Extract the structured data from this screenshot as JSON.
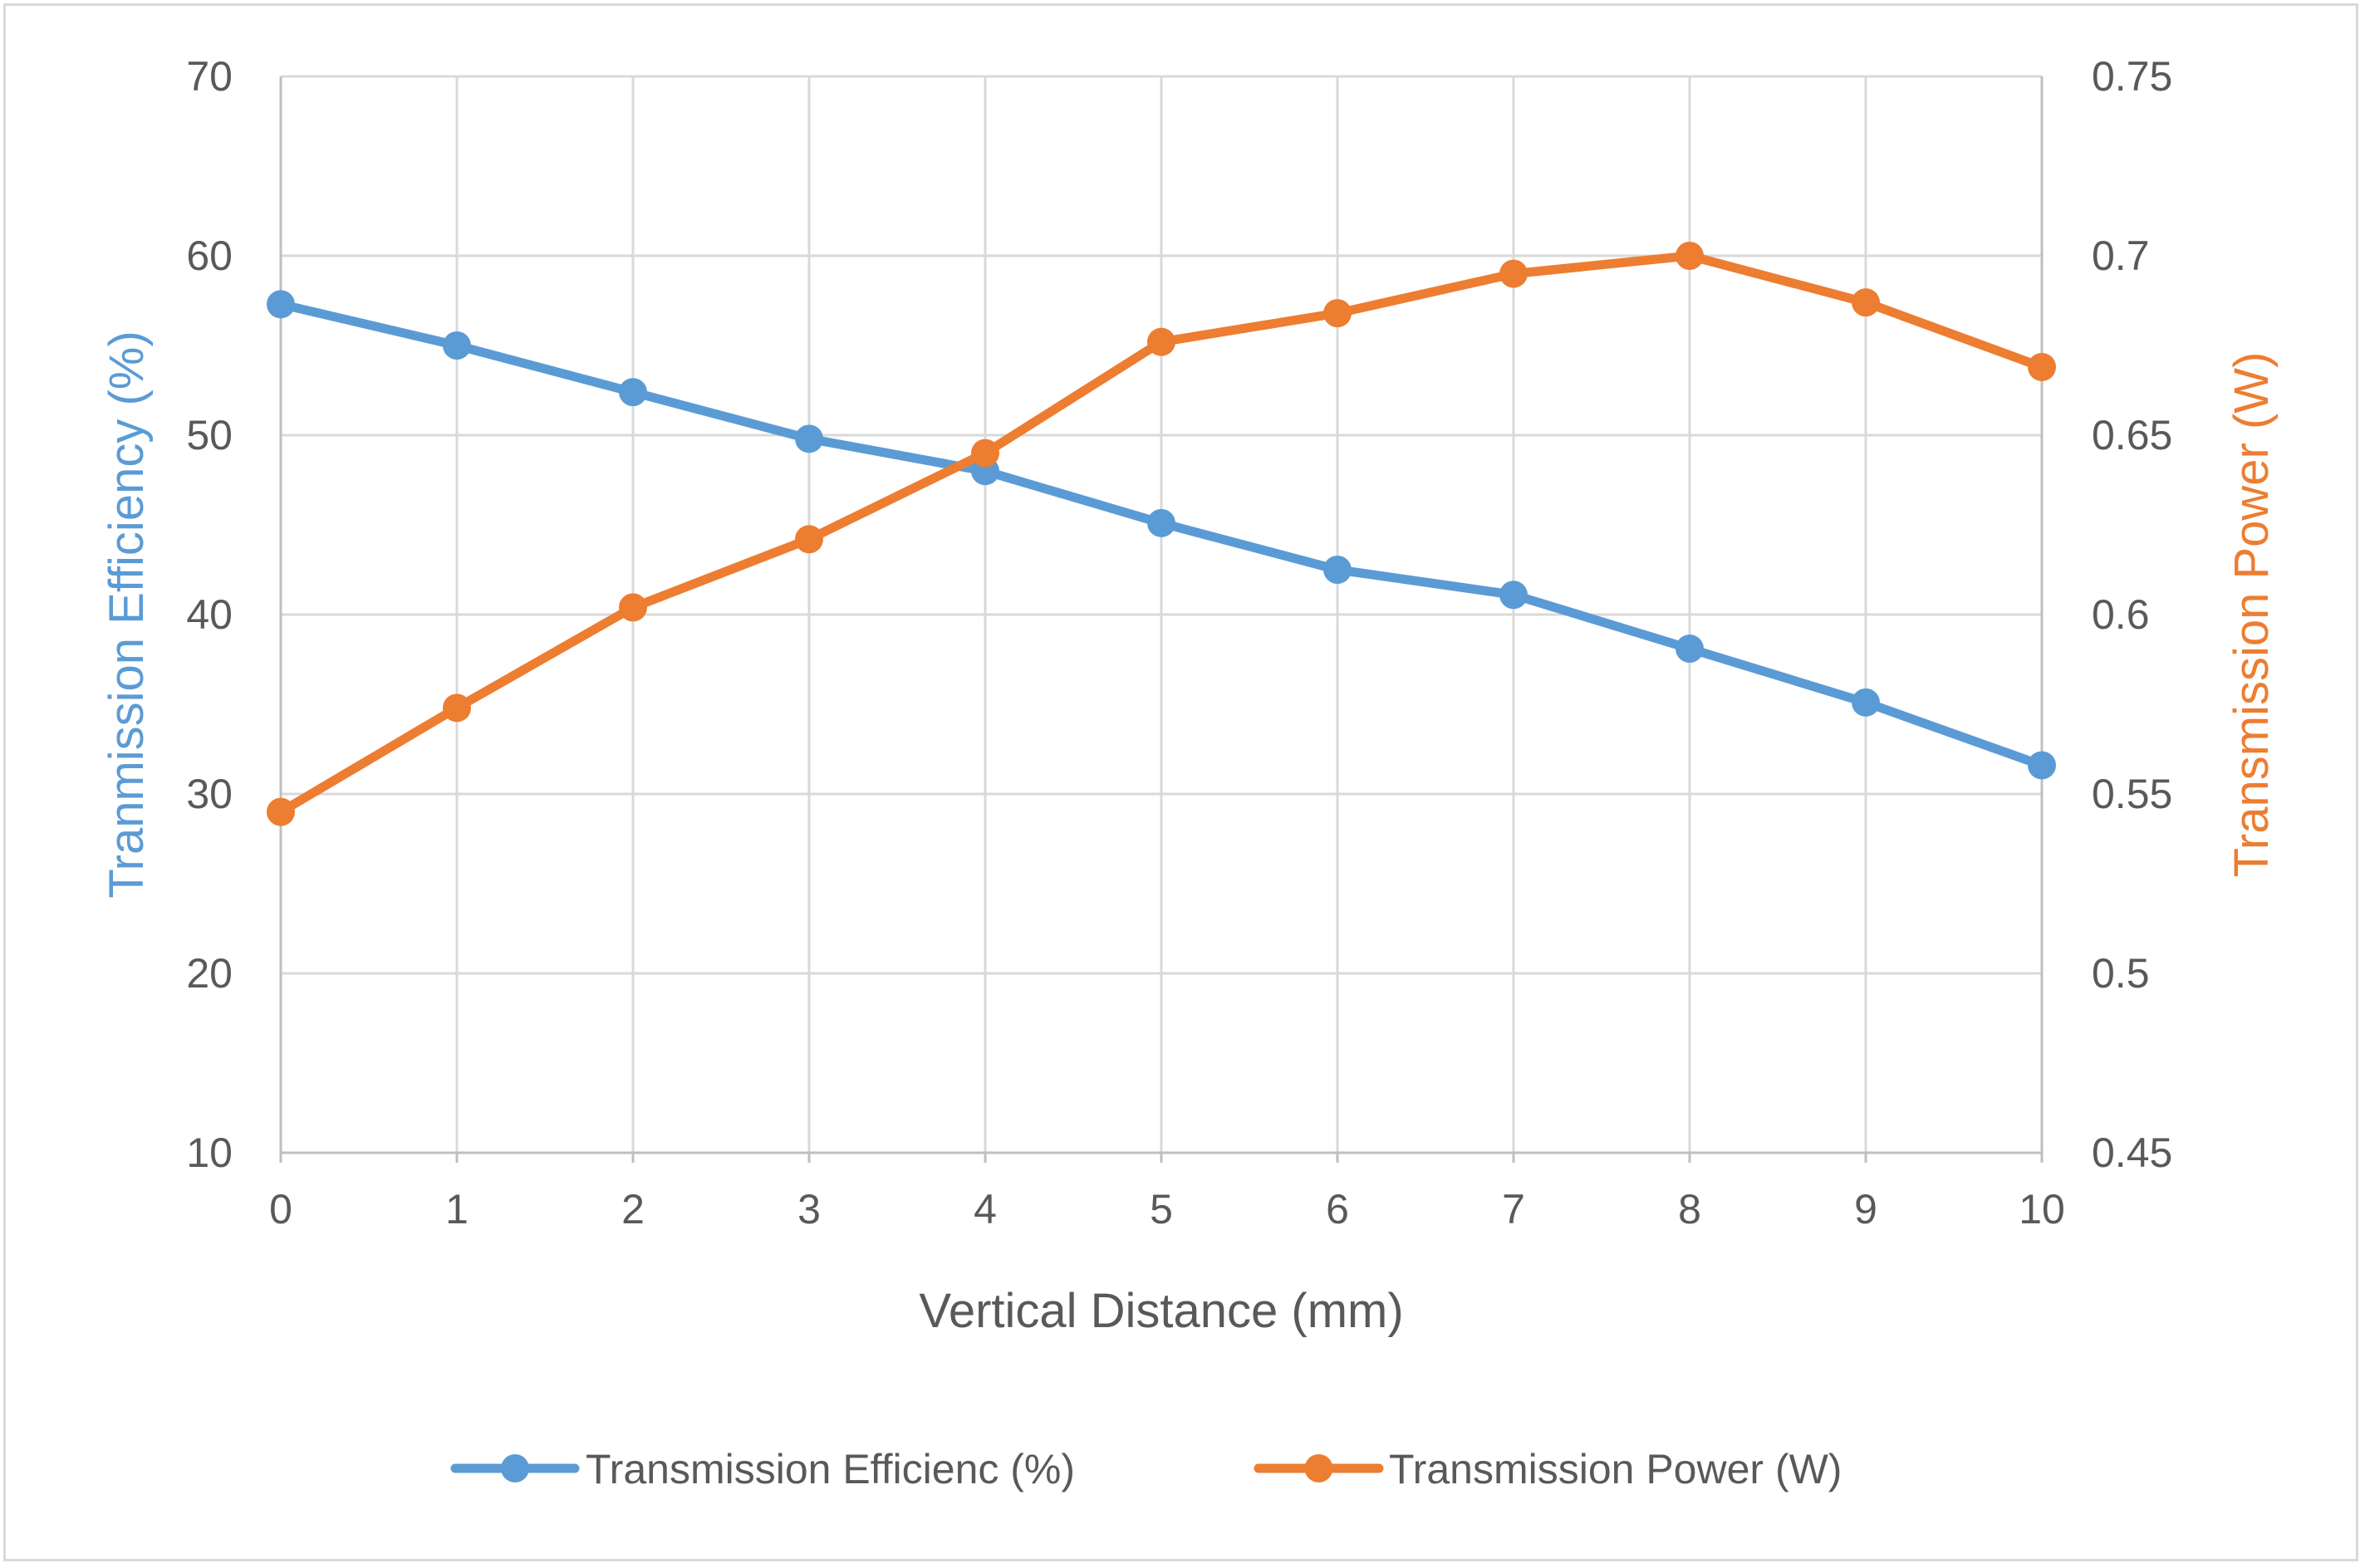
{
  "chart_data": {
    "type": "line",
    "x": [
      0,
      1,
      2,
      3,
      4,
      5,
      6,
      7,
      8,
      9,
      10
    ],
    "xlabel": "Vertical Distance (mm)",
    "xlim": [
      0,
      10
    ],
    "grid": true,
    "y_left": {
      "label": "Tranmission  Efficiency (%)",
      "lim": [
        10,
        70
      ],
      "ticks": [
        10,
        20,
        30,
        40,
        50,
        60,
        70
      ],
      "color": "#5b9bd5"
    },
    "y_right": {
      "label": "Transmission Power (W)",
      "lim": [
        0.45,
        0.75
      ],
      "ticks": [
        0.45,
        0.5,
        0.55,
        0.6,
        0.65,
        0.7,
        0.75
      ],
      "color": "#ed7d31"
    },
    "series": [
      {
        "name": "Transmission Efficienc (%)",
        "axis": "left",
        "color": "#5b9bd5",
        "values": [
          57.3,
          55.0,
          52.4,
          49.8,
          48.0,
          45.1,
          42.5,
          41.1,
          38.1,
          35.1,
          31.6
        ]
      },
      {
        "name": "Transmission Power (W)",
        "axis": "right",
        "color": "#ed7d31",
        "values": [
          0.545,
          0.574,
          0.602,
          0.621,
          0.645,
          0.676,
          0.684,
          0.695,
          0.7,
          0.687,
          0.669
        ]
      }
    ],
    "legend": "bottom"
  }
}
